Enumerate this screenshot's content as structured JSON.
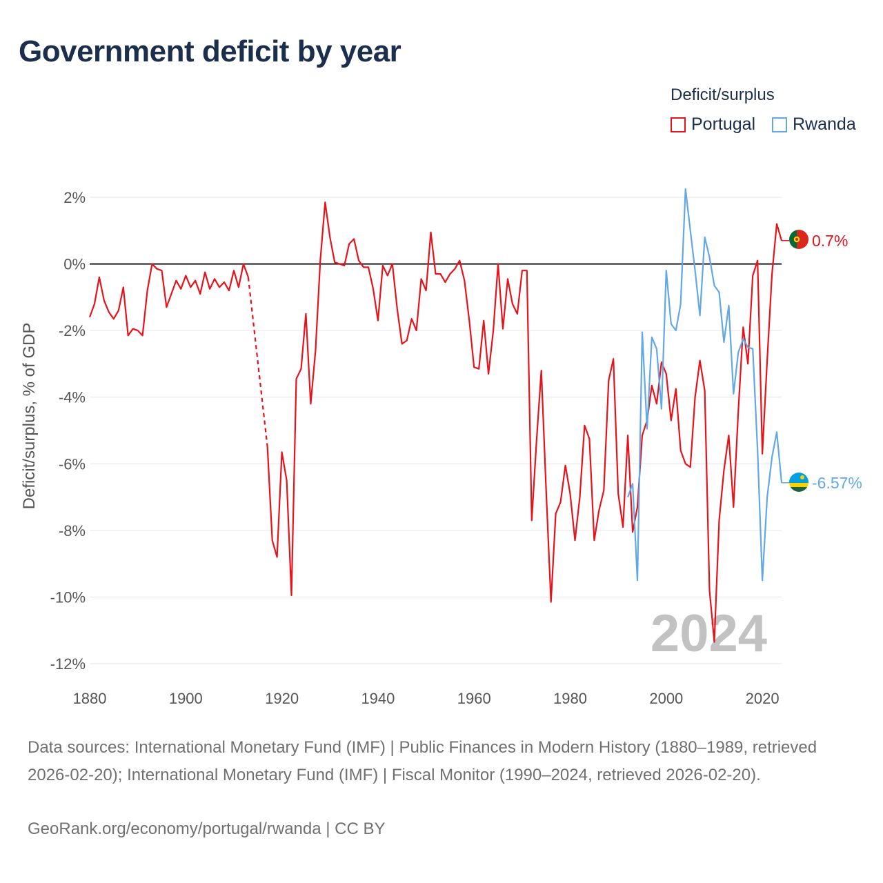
{
  "title": "Government deficit by year",
  "legend": {
    "title": "Deficit/surplus",
    "items": [
      {
        "name": "Portugal",
        "color": "#e8121b"
      },
      {
        "name": "Rwanda",
        "color": "#62a8e6"
      }
    ]
  },
  "year_watermark": "2024",
  "footer": {
    "source": "Data sources: International Monetary Fund (IMF) | Public Finances in Modern History (1880–1989, retrieved 2026-02-20); International Monetary Fund (IMF) | Fiscal Monitor (1990–2024, retrieved 2026-02-20).",
    "credit": "GeoRank.org/economy/portugal/rwanda | CC BY"
  },
  "chart_data": {
    "type": "line",
    "title": "Government deficit by year",
    "xlabel": "",
    "ylabel": "Deficit/surplus, % of GDP",
    "xlim": [
      1880,
      2024
    ],
    "ylim": [
      -12,
      2
    ],
    "x_ticks": [
      1880,
      1900,
      1920,
      1940,
      1960,
      1980,
      2000,
      2020
    ],
    "y_ticks": [
      2,
      0,
      -2,
      -4,
      -6,
      -8,
      -10,
      -12
    ],
    "y_tick_labels": [
      "2%",
      "0%",
      "-2%",
      "-4%",
      "-6%",
      "-8%",
      "-10%",
      "-12%"
    ],
    "gap": {
      "series": "Portugal",
      "from": 1912,
      "to": 1917,
      "style": "dashed"
    },
    "series": [
      {
        "name": "Portugal",
        "color": "#e8121b",
        "end_label": "0.7%",
        "points": [
          [
            1880,
            -1.6
          ],
          [
            1881,
            -1.2
          ],
          [
            1882,
            -0.4
          ],
          [
            1883,
            -1.1
          ],
          [
            1884,
            -1.45
          ],
          [
            1885,
            -1.65
          ],
          [
            1886,
            -1.4
          ],
          [
            1887,
            -0.7
          ],
          [
            1888,
            -2.15
          ],
          [
            1889,
            -1.95
          ],
          [
            1890,
            -2.0
          ],
          [
            1891,
            -2.15
          ],
          [
            1892,
            -0.8
          ],
          [
            1893,
            0.0
          ],
          [
            1894,
            -0.15
          ],
          [
            1895,
            -0.2
          ],
          [
            1896,
            -1.3
          ],
          [
            1897,
            -0.9
          ],
          [
            1898,
            -0.5
          ],
          [
            1899,
            -0.75
          ],
          [
            1900,
            -0.35
          ],
          [
            1901,
            -0.7
          ],
          [
            1902,
            -0.5
          ],
          [
            1903,
            -0.9
          ],
          [
            1904,
            -0.25
          ],
          [
            1905,
            -0.75
          ],
          [
            1906,
            -0.45
          ],
          [
            1907,
            -0.7
          ],
          [
            1908,
            -0.55
          ],
          [
            1909,
            -0.8
          ],
          [
            1910,
            -0.2
          ],
          [
            1911,
            -0.7
          ],
          [
            1912,
            0.0
          ],
          [
            1913,
            -0.4
          ],
          [
            1917,
            -5.5
          ],
          [
            1918,
            -8.3
          ],
          [
            1919,
            -8.8
          ],
          [
            1920,
            -5.65
          ],
          [
            1921,
            -6.5
          ],
          [
            1922,
            -9.95
          ],
          [
            1923,
            -3.45
          ],
          [
            1924,
            -3.15
          ],
          [
            1925,
            -1.5
          ],
          [
            1926,
            -4.2
          ],
          [
            1927,
            -2.6
          ],
          [
            1928,
            0.1
          ],
          [
            1929,
            1.85
          ],
          [
            1930,
            0.8
          ],
          [
            1931,
            0.05
          ],
          [
            1932,
            0.0
          ],
          [
            1933,
            -0.05
          ],
          [
            1934,
            0.6
          ],
          [
            1935,
            0.75
          ],
          [
            1936,
            0.1
          ],
          [
            1937,
            -0.1
          ],
          [
            1938,
            -0.1
          ],
          [
            1939,
            -0.75
          ],
          [
            1940,
            -1.7
          ],
          [
            1941,
            -0.05
          ],
          [
            1942,
            -0.35
          ],
          [
            1943,
            0.0
          ],
          [
            1944,
            -1.35
          ],
          [
            1945,
            -2.4
          ],
          [
            1946,
            -2.3
          ],
          [
            1947,
            -1.65
          ],
          [
            1948,
            -2.0
          ],
          [
            1949,
            -0.45
          ],
          [
            1950,
            -0.8
          ],
          [
            1951,
            0.95
          ],
          [
            1952,
            -0.3
          ],
          [
            1953,
            -0.3
          ],
          [
            1954,
            -0.55
          ],
          [
            1955,
            -0.3
          ],
          [
            1956,
            -0.15
          ],
          [
            1957,
            0.1
          ],
          [
            1958,
            -0.5
          ],
          [
            1959,
            -1.7
          ],
          [
            1960,
            -3.1
          ],
          [
            1961,
            -3.15
          ],
          [
            1962,
            -1.7
          ],
          [
            1963,
            -3.3
          ],
          [
            1964,
            -2.0
          ],
          [
            1965,
            0.0
          ],
          [
            1966,
            -1.95
          ],
          [
            1967,
            -0.45
          ],
          [
            1968,
            -1.2
          ],
          [
            1969,
            -1.5
          ],
          [
            1970,
            -0.2
          ],
          [
            1971,
            -0.2
          ],
          [
            1972,
            -7.7
          ],
          [
            1973,
            -5.3
          ],
          [
            1974,
            -3.2
          ],
          [
            1975,
            -6.8
          ],
          [
            1976,
            -10.15
          ],
          [
            1977,
            -7.5
          ],
          [
            1978,
            -7.15
          ],
          [
            1979,
            -6.05
          ],
          [
            1980,
            -6.9
          ],
          [
            1981,
            -8.3
          ],
          [
            1982,
            -7.0
          ],
          [
            1983,
            -4.85
          ],
          [
            1984,
            -5.25
          ],
          [
            1985,
            -8.3
          ],
          [
            1986,
            -7.4
          ],
          [
            1987,
            -6.8
          ],
          [
            1988,
            -3.5
          ],
          [
            1989,
            -2.85
          ],
          [
            1990,
            -6.9
          ],
          [
            1991,
            -7.9
          ],
          [
            1992,
            -5.15
          ],
          [
            1993,
            -8.05
          ],
          [
            1994,
            -7.3
          ],
          [
            1995,
            -5.15
          ],
          [
            1996,
            -4.7
          ],
          [
            1997,
            -3.65
          ],
          [
            1998,
            -4.2
          ],
          [
            1999,
            -2.95
          ],
          [
            2000,
            -3.3
          ],
          [
            2001,
            -4.7
          ],
          [
            2002,
            -3.75
          ],
          [
            2003,
            -5.6
          ],
          [
            2004,
            -6.0
          ],
          [
            2005,
            -6.1
          ],
          [
            2006,
            -4.0
          ],
          [
            2007,
            -2.9
          ],
          [
            2008,
            -3.8
          ],
          [
            2009,
            -9.8
          ],
          [
            2010,
            -11.35
          ],
          [
            2011,
            -7.7
          ],
          [
            2012,
            -6.2
          ],
          [
            2013,
            -5.15
          ],
          [
            2014,
            -7.3
          ],
          [
            2015,
            -4.4
          ],
          [
            2016,
            -1.9
          ],
          [
            2017,
            -3.0
          ],
          [
            2018,
            -0.35
          ],
          [
            2019,
            0.1
          ],
          [
            2020,
            -5.7
          ],
          [
            2021,
            -2.9
          ],
          [
            2022,
            -0.3
          ],
          [
            2023,
            1.2
          ],
          [
            2024,
            0.7
          ]
        ]
      },
      {
        "name": "Rwanda",
        "color": "#62a8e6",
        "end_label": "-6.57%",
        "points": [
          [
            1992,
            -7.0
          ],
          [
            1993,
            -6.6
          ],
          [
            1994,
            -9.5
          ],
          [
            1995,
            -2.05
          ],
          [
            1996,
            -4.95
          ],
          [
            1997,
            -2.2
          ],
          [
            1998,
            -2.55
          ],
          [
            1999,
            -4.35
          ],
          [
            2000,
            -0.2
          ],
          [
            2001,
            -1.8
          ],
          [
            2002,
            -2.0
          ],
          [
            2003,
            -1.2
          ],
          [
            2004,
            2.25
          ],
          [
            2005,
            1.0
          ],
          [
            2006,
            -0.2
          ],
          [
            2007,
            -1.55
          ],
          [
            2008,
            0.8
          ],
          [
            2009,
            0.2
          ],
          [
            2010,
            -0.65
          ],
          [
            2011,
            -0.85
          ],
          [
            2012,
            -2.35
          ],
          [
            2013,
            -1.25
          ],
          [
            2014,
            -3.9
          ],
          [
            2015,
            -2.65
          ],
          [
            2016,
            -2.25
          ],
          [
            2017,
            -2.5
          ],
          [
            2018,
            -2.55
          ],
          [
            2019,
            -5.6
          ],
          [
            2020,
            -9.5
          ],
          [
            2021,
            -7.0
          ],
          [
            2022,
            -5.8
          ],
          [
            2023,
            -5.05
          ],
          [
            2024,
            -6.57
          ]
        ]
      }
    ]
  }
}
